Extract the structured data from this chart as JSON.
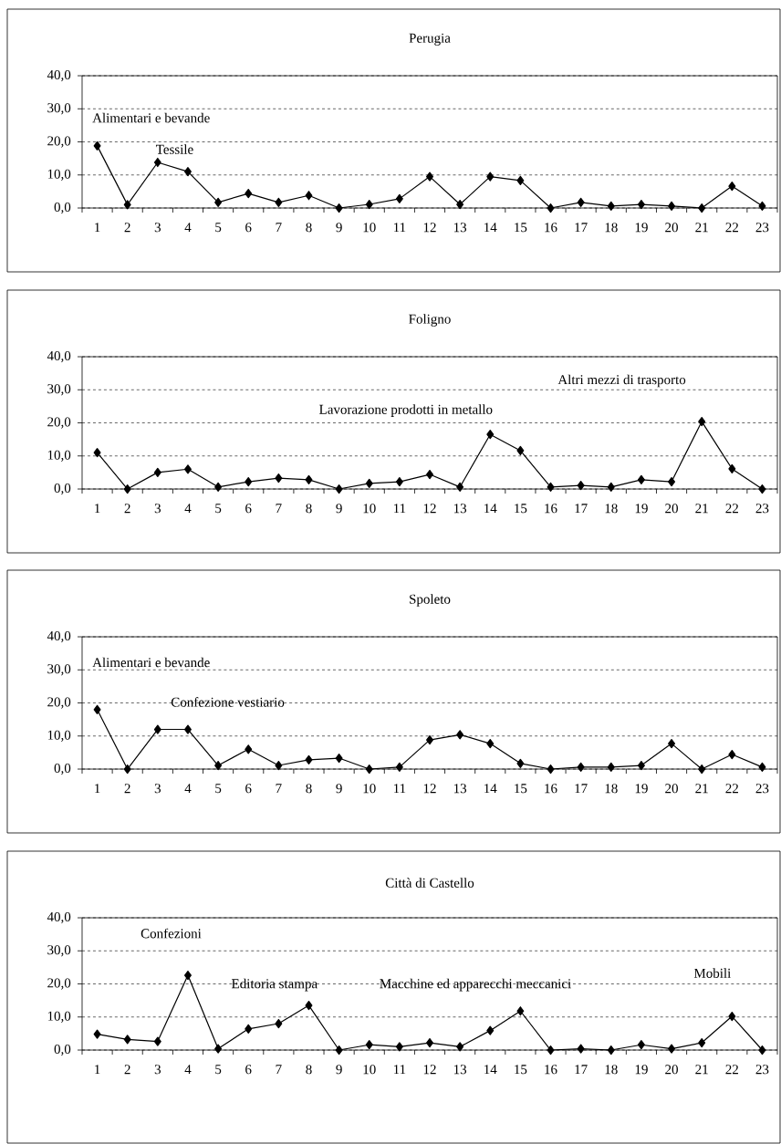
{
  "chart_data": [
    {
      "type": "line",
      "title": "Perugia",
      "categories": [
        "1",
        "2",
        "3",
        "4",
        "5",
        "6",
        "7",
        "8",
        "9",
        "10",
        "11",
        "12",
        "13",
        "14",
        "15",
        "16",
        "17",
        "18",
        "19",
        "20",
        "21",
        "22",
        "23"
      ],
      "values": [
        18.8,
        1.0,
        13.8,
        11.0,
        1.7,
        4.4,
        1.7,
        3.8,
        0,
        1.1,
        2.8,
        9.5,
        1.1,
        9.5,
        8.3,
        0,
        1.7,
        0.6,
        1.1,
        0.6,
        0,
        6.6,
        0.6
      ],
      "color": "#000000",
      "marker": "diamond",
      "line_style": "solid",
      "grid": "y",
      "ylim": [
        0,
        40
      ],
      "yticks": [
        {
          "value": 0,
          "label": "0,0"
        },
        {
          "value": 10,
          "label": "10,0"
        },
        {
          "value": 20,
          "label": "20,0"
        },
        {
          "value": 30,
          "label": "30,0"
        },
        {
          "value": 40,
          "label": "40,0"
        }
      ],
      "annotations": [
        "Alimentari e bevande",
        "Tessile"
      ]
    },
    {
      "type": "line",
      "title": "Foligno",
      "categories": [
        "1",
        "2",
        "3",
        "4",
        "5",
        "6",
        "7",
        "8",
        "9",
        "10",
        "11",
        "12",
        "13",
        "14",
        "15",
        "16",
        "17",
        "18",
        "19",
        "20",
        "21",
        "22",
        "23"
      ],
      "values": [
        11.0,
        0,
        5.0,
        6.0,
        0.6,
        2.2,
        3.3,
        2.8,
        0,
        1.7,
        2.2,
        4.4,
        0.6,
        16.5,
        11.6,
        0.6,
        1.1,
        0.6,
        2.8,
        2.2,
        20.4,
        6.1,
        0
      ],
      "color": "#000000",
      "marker": "diamond",
      "line_style": "solid",
      "grid": "y",
      "ylim": [
        0,
        40
      ],
      "yticks": [
        {
          "value": 0,
          "label": "0,0"
        },
        {
          "value": 10,
          "label": "10,0"
        },
        {
          "value": 20,
          "label": "20,0"
        },
        {
          "value": 30,
          "label": "30,0"
        },
        {
          "value": 40,
          "label": "40,0"
        }
      ],
      "annotations": [
        "Lavorazione prodotti in  metallo",
        "Altri mezzi di trasporto"
      ]
    },
    {
      "type": "line",
      "title": "Spoleto",
      "categories": [
        "1",
        "2",
        "3",
        "4",
        "5",
        "6",
        "7",
        "8",
        "9",
        "10",
        "11",
        "12",
        "13",
        "14",
        "15",
        "16",
        "17",
        "18",
        "19",
        "20",
        "21",
        "22",
        "23"
      ],
      "values": [
        18.0,
        0,
        12.0,
        12.0,
        1.1,
        6.0,
        1.1,
        2.8,
        3.3,
        0,
        0.6,
        8.8,
        10.4,
        7.7,
        1.7,
        0,
        0.6,
        0.6,
        1.1,
        7.7,
        0,
        4.4,
        0.6
      ],
      "color": "#000000",
      "marker": "diamond",
      "line_style": "solid",
      "grid": "y",
      "ylim": [
        0,
        40
      ],
      "yticks": [
        {
          "value": 0,
          "label": "0,0"
        },
        {
          "value": 10,
          "label": "10,0"
        },
        {
          "value": 20,
          "label": "20,0"
        },
        {
          "value": 30,
          "label": "30,0"
        },
        {
          "value": 40,
          "label": "40,0"
        }
      ],
      "annotations": [
        "Alimentari e bevande",
        "Confezione vestiario"
      ]
    },
    {
      "type": "line",
      "title": "Città di Castello",
      "categories": [
        "1",
        "2",
        "3",
        "4",
        "5",
        "6",
        "7",
        "8",
        "9",
        "10",
        "11",
        "12",
        "13",
        "14",
        "15",
        "16",
        "17",
        "18",
        "19",
        "20",
        "21",
        "22",
        "23"
      ],
      "values": [
        4.8,
        3.2,
        2.6,
        22.6,
        0.4,
        6.4,
        8.0,
        13.5,
        0,
        1.6,
        1.0,
        2.2,
        1.0,
        5.9,
        11.8,
        0,
        0.4,
        0,
        1.6,
        0.4,
        2.2,
        10.2,
        0
      ],
      "color": "#000000",
      "marker": "diamond",
      "line_style": "solid",
      "grid": "y",
      "ylim": [
        0,
        40
      ],
      "yticks": [
        {
          "value": 0,
          "label": "0,0"
        },
        {
          "value": 10,
          "label": "10,0"
        },
        {
          "value": 20,
          "label": "20,0"
        },
        {
          "value": 30,
          "label": "30,0"
        },
        {
          "value": 40,
          "label": "40,0"
        }
      ],
      "annotations": [
        "Confezioni",
        "Editoria stampa",
        "Macchine ed apparecchi meccanici",
        "Mobili"
      ]
    }
  ]
}
